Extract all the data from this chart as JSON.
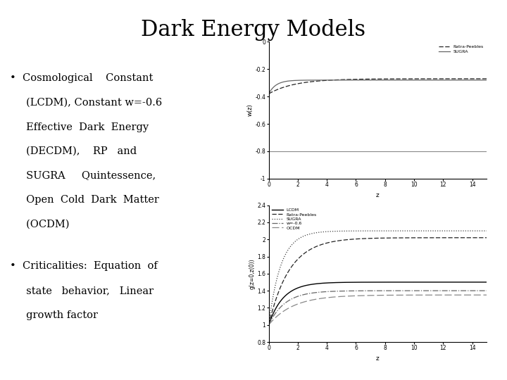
{
  "title": "Dark Energy Models",
  "title_fontsize": 22,
  "title_fontfamily": "serif",
  "bullet_fontsize": 10.5,
  "bullet_fontfamily": "serif",
  "background_color": "#ffffff",
  "text_color": "#000000",
  "bullet1_lines": [
    "Cosmological    Constant",
    "(LCDM), Constant w=-0.6",
    "Effective  Dark  Energy",
    "(DECDM),    RP   and",
    "SUGRA     Quintessence,",
    "Open  Cold  Dark  Matter",
    "(OCDM)"
  ],
  "bullet2_lines": [
    "Criticalities:  Equation  of",
    "state   behavior,   Linear",
    "growth factor"
  ],
  "top_plot": {
    "xlabel": "z",
    "ylabel": "w(z)",
    "xlim": [
      0,
      15
    ],
    "ylim": [
      -1.0,
      0.0
    ],
    "yticks": [
      0,
      -0.2,
      -0.4,
      -0.6,
      -0.8,
      -1.0
    ],
    "yticklabels": [
      "0",
      "-0.2",
      "-0.4",
      "-0.6",
      "-0.8",
      "-1"
    ],
    "xticks": [
      0,
      2,
      4,
      6,
      8,
      10,
      12,
      14
    ],
    "legend": [
      "Ratra-Peebles",
      "SUGRA"
    ]
  },
  "bottom_plot": {
    "xlabel": "z",
    "ylabel": "g(z=0,z(0))",
    "xlim": [
      0,
      15
    ],
    "ylim": [
      0.8,
      2.4
    ],
    "yticks": [
      0.8,
      1.0,
      1.2,
      1.4,
      1.6,
      1.8,
      2.0,
      2.2,
      2.4
    ],
    "yticklabels": [
      "0.8",
      "1",
      "1.2",
      "1.4",
      "1.6",
      "1.8",
      "2",
      "2.2",
      "2.4"
    ],
    "xticks": [
      0,
      2,
      4,
      6,
      8,
      10,
      12,
      14
    ],
    "legend": [
      "LCDM",
      "Ratra-Peebles",
      "SUGRA",
      "w=-0.6",
      "OCDM"
    ]
  }
}
